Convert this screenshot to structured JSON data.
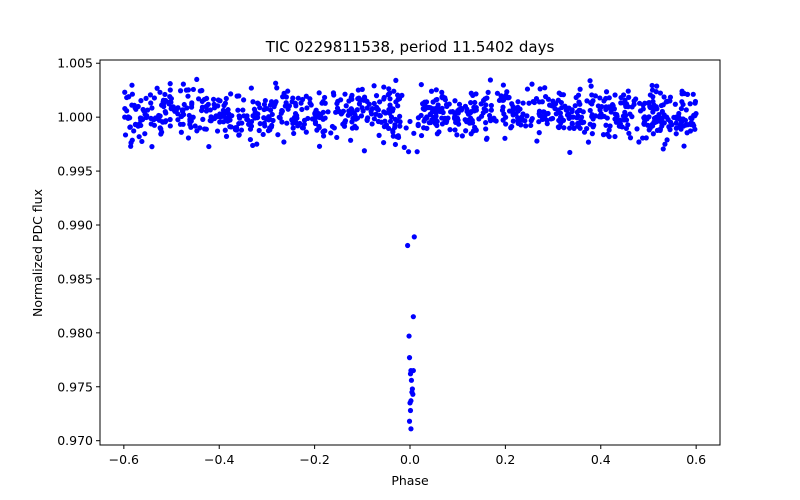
{
  "chart_data": {
    "type": "scatter",
    "title": "TIC 0229811538, period 11.5402 days",
    "xlabel": "Phase",
    "ylabel": "Normalized PDC flux",
    "xlim": [
      -0.65,
      0.65
    ],
    "ylim": [
      0.9696,
      1.0053
    ],
    "xticks": [
      -0.6,
      -0.4,
      -0.2,
      0.0,
      0.2,
      0.4,
      0.6
    ],
    "xtick_labels": [
      "−0.6",
      "−0.4",
      "−0.2",
      "0.0",
      "0.2",
      "0.4",
      "0.6"
    ],
    "yticks": [
      0.97,
      0.975,
      0.98,
      0.985,
      0.99,
      0.995,
      1.0,
      1.005
    ],
    "ytick_labels": [
      "0.970",
      "0.975",
      "0.980",
      "0.985",
      "0.990",
      "0.995",
      "1.000",
      "1.005"
    ],
    "marker_color": "#0000ff",
    "series": [
      {
        "name": "PDC flux",
        "baseline": {
          "x_range": [
            -0.6,
            0.6
          ],
          "n_points": 1000,
          "mean": 1.0003,
          "std": 0.0012,
          "min": 0.9966,
          "max": 1.0036,
          "note": "out-of-transit scatter, approximately flat"
        },
        "points": [
          {
            "x": 0.0,
            "y": 0.9996
          },
          {
            "x": -0.008,
            "y": 0.999
          },
          {
            "x": 0.008,
            "y": 0.9985
          },
          {
            "x": -0.012,
            "y": 0.9972
          },
          {
            "x": -0.003,
            "y": 0.9968
          },
          {
            "x": 0.015,
            "y": 0.9968
          },
          {
            "x": -0.005,
            "y": 0.9881
          },
          {
            "x": 0.009,
            "y": 0.9889
          },
          {
            "x": 0.007,
            "y": 0.9815
          },
          {
            "x": -0.002,
            "y": 0.9797
          },
          {
            "x": -0.001,
            "y": 0.9777
          },
          {
            "x": 0.002,
            "y": 0.9765
          },
          {
            "x": 0.007,
            "y": 0.9765
          },
          {
            "x": 0.001,
            "y": 0.9762
          },
          {
            "x": 0.003,
            "y": 0.9756
          },
          {
            "x": 0.005,
            "y": 0.9748
          },
          {
            "x": 0.004,
            "y": 0.9745
          },
          {
            "x": 0.006,
            "y": 0.9743
          },
          {
            "x": 0.002,
            "y": 0.9737
          },
          {
            "x": 0.0,
            "y": 0.9735
          },
          {
            "x": 0.001,
            "y": 0.9728
          },
          {
            "x": -0.001,
            "y": 0.9718
          },
          {
            "x": 0.002,
            "y": 0.9711
          }
        ]
      }
    ]
  }
}
